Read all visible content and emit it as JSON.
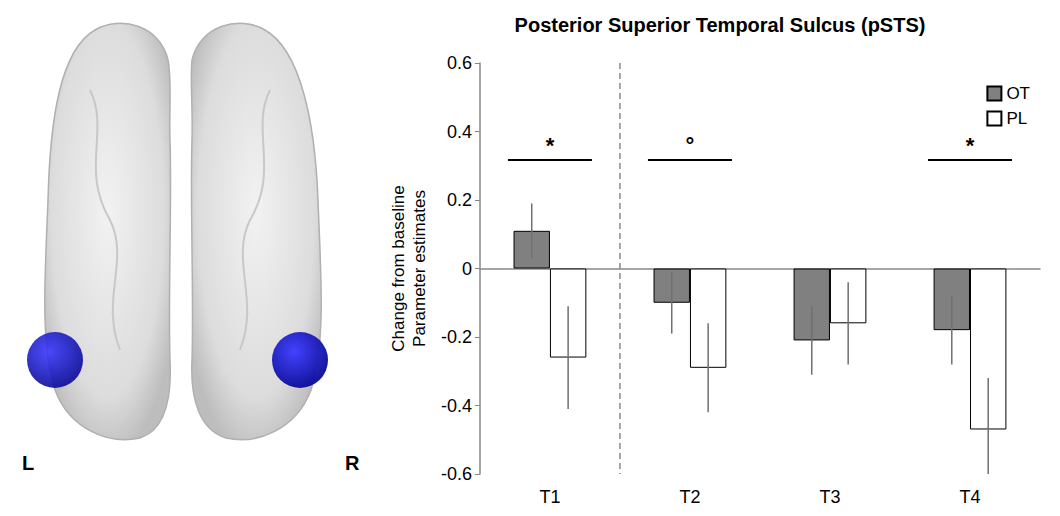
{
  "chart_data": {
    "type": "bar",
    "title": "Posterior Superior Temporal Sulcus (pSTS)",
    "ylabel": [
      "Change from baseline",
      "Parameter estimates"
    ],
    "categories": [
      "T1",
      "T2",
      "T3",
      "T4"
    ],
    "series": [
      {
        "name": "OT",
        "color": "#808080",
        "values": [
          0.11,
          -0.1,
          -0.21,
          -0.18
        ],
        "errors": [
          0.08,
          0.09,
          0.1,
          0.1
        ]
      },
      {
        "name": "PL",
        "color": "#ffffff",
        "values": [
          -0.26,
          -0.29,
          -0.16,
          -0.47
        ],
        "errors": [
          0.15,
          0.13,
          0.12,
          0.15
        ]
      }
    ],
    "ylim": [
      -0.6,
      0.6
    ],
    "yticks": [
      -0.6,
      -0.4,
      -0.2,
      0,
      0.2,
      0.4,
      0.6
    ],
    "legend": "upper right",
    "grid": false,
    "annotations": [
      {
        "category": "T1",
        "text": "*"
      },
      {
        "category": "T2",
        "text": "°"
      },
      {
        "category": "T4",
        "text": "*"
      }
    ],
    "brain_labels": [
      "L",
      "R"
    ]
  }
}
